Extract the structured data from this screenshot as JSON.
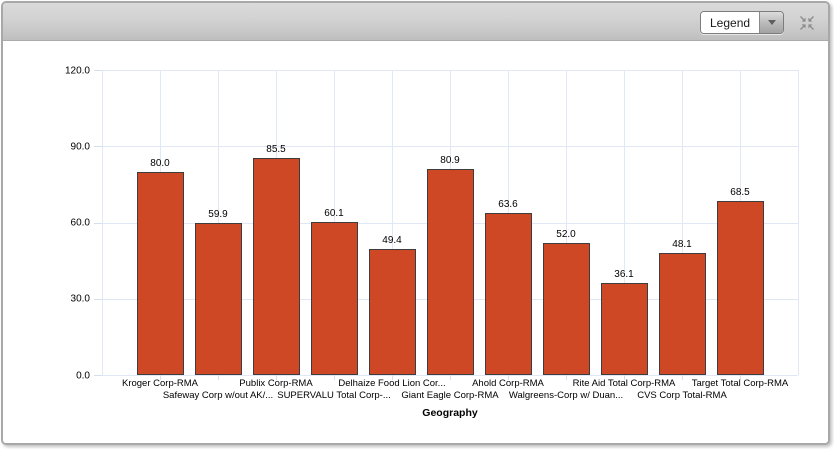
{
  "toolbar": {
    "legend_dropdown": {
      "value": "Legend"
    },
    "collapse_icon": "collapse-arrows-icon"
  },
  "chart_data": {
    "type": "bar",
    "categories": [
      "Kroger Corp-RMA",
      "Safeway Corp w/out AK/...",
      "Publix Corp-RMA",
      "SUPERVALU Total Corp-...",
      "Delhaize Food Lion Cor...",
      "Giant Eagle Corp-RMA",
      "Ahold Corp-RMA",
      "Walgreens-Corp w/ Duan...",
      "Rite Aid Total Corp-RMA",
      "CVS Corp Total-RMA",
      "Target Total Corp-RMA"
    ],
    "values": [
      80.0,
      59.9,
      85.5,
      60.1,
      49.4,
      80.9,
      63.6,
      52.0,
      36.1,
      48.1,
      68.5
    ],
    "value_labels": [
      "80.0",
      "59.9",
      "85.5",
      "60.1",
      "49.4",
      "80.9",
      "63.6",
      "52.0",
      "36.1",
      "48.1",
      "68.5"
    ],
    "title": "",
    "xlabel": "Geography",
    "ylabel": "",
    "ylim": [
      0,
      120
    ],
    "ytick_step": 30,
    "ytick_labels": [
      "0.0",
      "30.0",
      "60.0",
      "90.0",
      "120.0"
    ],
    "grid": true,
    "legend_position": "collapsed-dropdown",
    "bar_color": "#ce4826",
    "bar_border_color": "#3d3d3d",
    "gridline_color": "#dfe8f4"
  }
}
